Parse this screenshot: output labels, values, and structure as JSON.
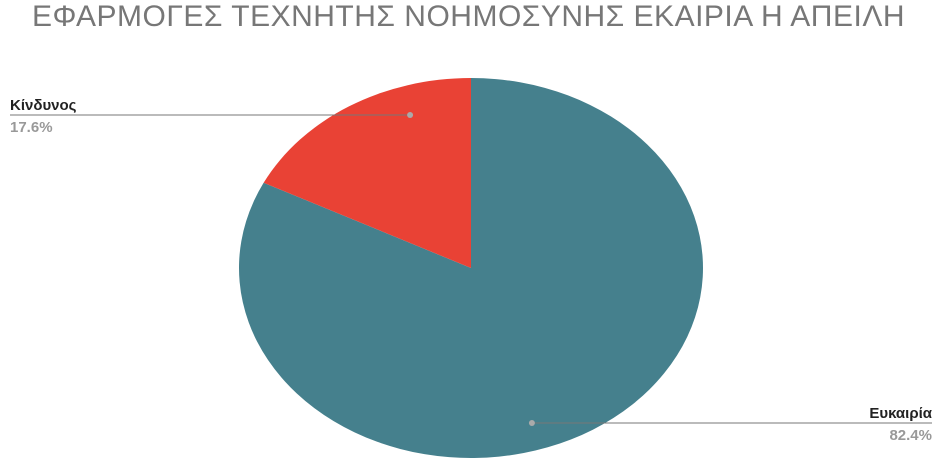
{
  "chart_data": {
    "type": "pie",
    "title": "ΕΦΑΡΜΟΓΕΣ ΤΕΧΝΗΤΗΣ ΝΟΗΜΟΣΥΝΗΣ ΕΚΑΙΡΙΑ Η ΑΠΕΙΛΗ",
    "categories": [
      "Ευκαιρία",
      "Κίνδυνος"
    ],
    "values": [
      82.4,
      17.6
    ],
    "value_labels": [
      "82.4%",
      "17.6%"
    ],
    "colors": [
      "#45808d",
      "#e94235"
    ]
  }
}
